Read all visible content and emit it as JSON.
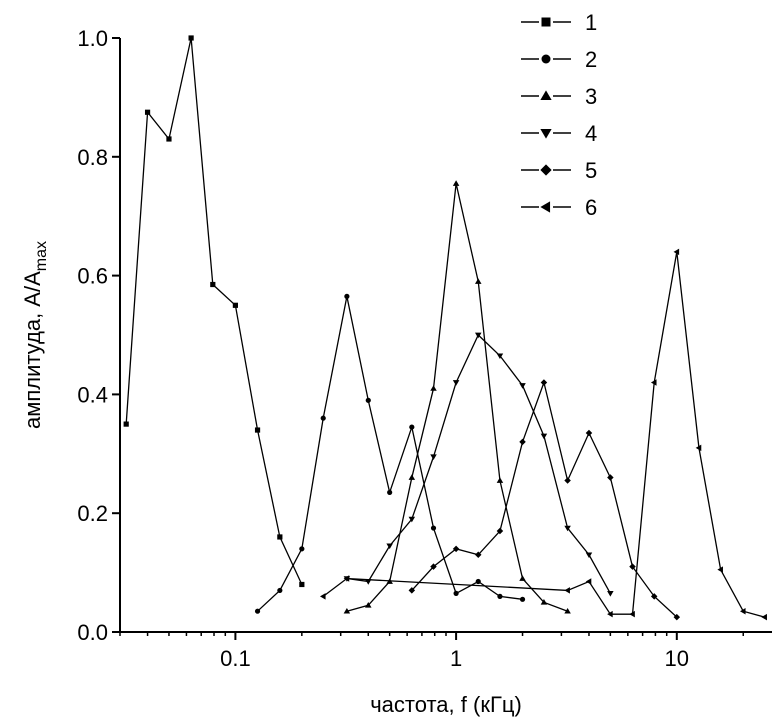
{
  "chart_data": {
    "type": "line",
    "xscale": "log",
    "xlabel": "частота, f (кГц)",
    "ylabel_main": "амплитуда, A/A",
    "ylabel_sub": "max",
    "xlim": [
      0.03,
      27
    ],
    "ylim": [
      0,
      1.0
    ],
    "xticks": [
      0.1,
      1,
      10
    ],
    "xtick_labels": [
      "0.1",
      "1",
      "10"
    ],
    "yticks": [
      0.0,
      0.2,
      0.4,
      0.6,
      0.8,
      1.0
    ],
    "ytick_labels": [
      "0.0",
      "0.2",
      "0.4",
      "0.6",
      "0.8",
      "1.0"
    ],
    "grid": false,
    "legend_position": "top-right",
    "series": [
      {
        "name": "1",
        "marker": "square",
        "x": [
          0.032,
          0.04,
          0.05,
          0.063,
          0.079,
          0.1,
          0.126,
          0.159,
          0.2
        ],
        "y": [
          0.35,
          0.875,
          0.83,
          1.0,
          0.585,
          0.55,
          0.34,
          0.16,
          0.08
        ]
      },
      {
        "name": "2",
        "marker": "circle",
        "x": [
          0.126,
          0.159,
          0.2,
          0.25,
          0.32,
          0.4,
          0.5,
          0.63,
          0.79,
          1.0,
          1.26,
          1.58,
          2.0
        ],
        "y": [
          0.035,
          0.07,
          0.14,
          0.36,
          0.565,
          0.39,
          0.235,
          0.345,
          0.175,
          0.065,
          0.085,
          0.06,
          0.055
        ]
      },
      {
        "name": "3",
        "marker": "triangle-up",
        "x": [
          0.32,
          0.4,
          0.5,
          0.63,
          0.79,
          1.0,
          1.26,
          1.58,
          2.0,
          2.5,
          3.2
        ],
        "y": [
          0.035,
          0.045,
          0.085,
          0.26,
          0.41,
          0.755,
          0.59,
          0.255,
          0.09,
          0.05,
          0.035
        ]
      },
      {
        "name": "4",
        "marker": "triangle-down",
        "x": [
          0.32,
          0.4,
          0.5,
          0.63,
          0.79,
          1.0,
          1.26,
          1.58,
          2.0,
          2.5,
          3.2,
          4.0,
          5.0
        ],
        "y": [
          0.09,
          0.085,
          0.145,
          0.19,
          0.295,
          0.42,
          0.5,
          0.465,
          0.415,
          0.33,
          0.175,
          0.13,
          0.065
        ]
      },
      {
        "name": "5",
        "marker": "diamond",
        "x": [
          0.63,
          0.79,
          1.0,
          1.26,
          1.58,
          2.0,
          2.5,
          3.2,
          4.0,
          5.0,
          6.3,
          7.9,
          10.0
        ],
        "y": [
          0.07,
          0.11,
          0.14,
          0.13,
          0.17,
          0.32,
          0.42,
          0.255,
          0.335,
          0.26,
          0.11,
          0.06,
          0.025
        ]
      },
      {
        "name": "6",
        "marker": "triangle-left",
        "x": [
          0.25,
          0.32,
          3.2,
          4.0,
          5.0,
          6.3,
          7.9,
          10.0,
          12.6,
          15.8,
          20.0,
          25.0
        ],
        "y": [
          0.06,
          0.09,
          0.07,
          0.085,
          0.03,
          0.03,
          0.42,
          0.64,
          0.31,
          0.105,
          0.035,
          0.025
        ]
      }
    ]
  }
}
